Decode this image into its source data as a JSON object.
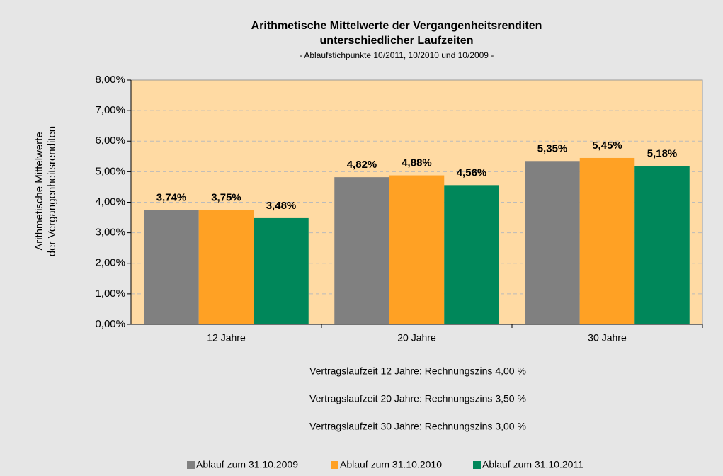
{
  "chart_data": {
    "type": "bar",
    "title": [
      "Arithmetische Mittelwerte der Vergangenheitsrenditen",
      "unterschiedlicher Laufzeiten"
    ],
    "subtitle": "- Ablaufstichpunkte 10/2011, 10/2010 und 10/2009 -",
    "y_label": [
      "Arithmetische Mittelwerte",
      "der Vergangenheitsrenditen"
    ],
    "categories": [
      "12 Jahre",
      "20 Jahre",
      "30 Jahre"
    ],
    "series": [
      {
        "name": "Ablauf zum 31.10.2009",
        "color": "#808080",
        "values": [
          3.74,
          4.82,
          5.35
        ],
        "value_labels": [
          "3,74%",
          "4,82%",
          "5,35%"
        ]
      },
      {
        "name": "Ablauf zum 31.10.2010",
        "color": "#ffa124",
        "values": [
          3.75,
          4.88,
          5.45
        ],
        "value_labels": [
          "3,75%",
          "4,88%",
          "5,45%"
        ]
      },
      {
        "name": "Ablauf zum 31.10.2011",
        "color": "#00875a",
        "values": [
          3.48,
          4.56,
          5.18
        ],
        "value_labels": [
          "3,48%",
          "4,56%",
          "5,18%"
        ]
      }
    ],
    "ylim": [
      0,
      8
    ],
    "yticks": [
      {
        "value": 0,
        "label": "0,00%"
      },
      {
        "value": 1,
        "label": "1,00%"
      },
      {
        "value": 2,
        "label": "2,00%"
      },
      {
        "value": 3,
        "label": "3,00%"
      },
      {
        "value": 4,
        "label": "4,00%"
      },
      {
        "value": 5,
        "label": "5,00%"
      },
      {
        "value": 6,
        "label": "6,00%"
      },
      {
        "value": 7,
        "label": "7,00%"
      },
      {
        "value": 8,
        "label": "8,00%"
      }
    ],
    "grid": true,
    "annotations": [
      "Vertragslaufzeit 12 Jahre: Rechnungszins 4,00 %",
      "Vertragslaufzeit 20 Jahre: Rechnungszins 3,50 %",
      "Vertragslaufzeit 30 Jahre: Rechnungszins 3,00 %"
    ],
    "legend": "bottom"
  }
}
